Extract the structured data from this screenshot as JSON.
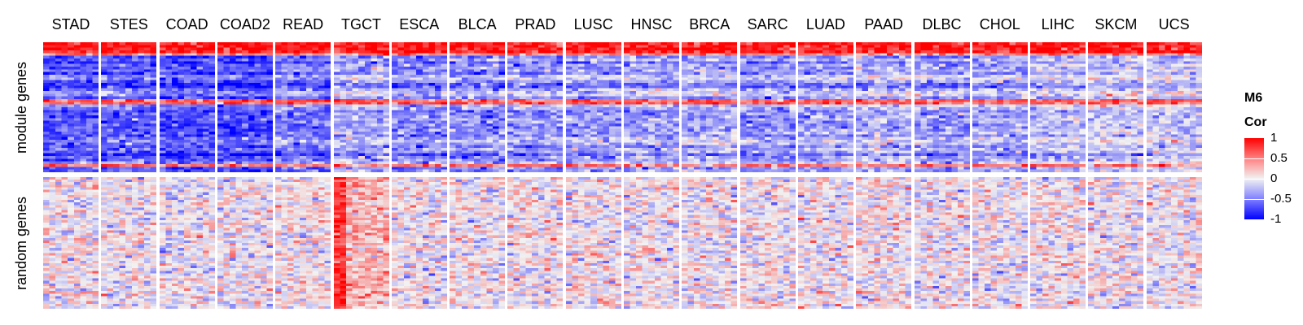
{
  "chart_data": {
    "type": "heatmap",
    "columns": [
      "STAD",
      "STES",
      "COAD",
      "COAD2",
      "READ",
      "TGCT",
      "ESCA",
      "BLCA",
      "PRAD",
      "LUSC",
      "HNSC",
      "BRCA",
      "SARC",
      "LUAD",
      "PAAD",
      "DLBC",
      "CHOL",
      "LIHC",
      "SKCM",
      "UCS"
    ],
    "row_groups": [
      "module genes",
      "random genes"
    ],
    "legend": {
      "title_line1": "M6",
      "title_line2": "Cor",
      "ticks": [
        "1",
        "0.5",
        "0",
        "-0.5",
        "-1"
      ],
      "range": [
        -1,
        1
      ],
      "colors": {
        "high": "#ff0000",
        "mid": "#f2f2f2",
        "low": "#0000ff"
      }
    },
    "grid": false,
    "legend_position": "right",
    "module_mean_corr": [
      -0.62,
      -0.6,
      -0.68,
      -0.7,
      -0.5,
      -0.3,
      -0.45,
      -0.42,
      -0.38,
      -0.36,
      -0.34,
      -0.28,
      -0.4,
      -0.32,
      -0.25,
      -0.35,
      -0.3,
      -0.22,
      -0.18,
      -0.15
    ],
    "random_mean_corr": [
      0.02,
      0.0,
      0.0,
      0.0,
      0.05,
      0.25,
      0.0,
      0.02,
      0.02,
      0.05,
      0.02,
      0.0,
      0.0,
      0.0,
      0.02,
      0.0,
      0.0,
      0.02,
      0.0,
      0.0
    ]
  }
}
